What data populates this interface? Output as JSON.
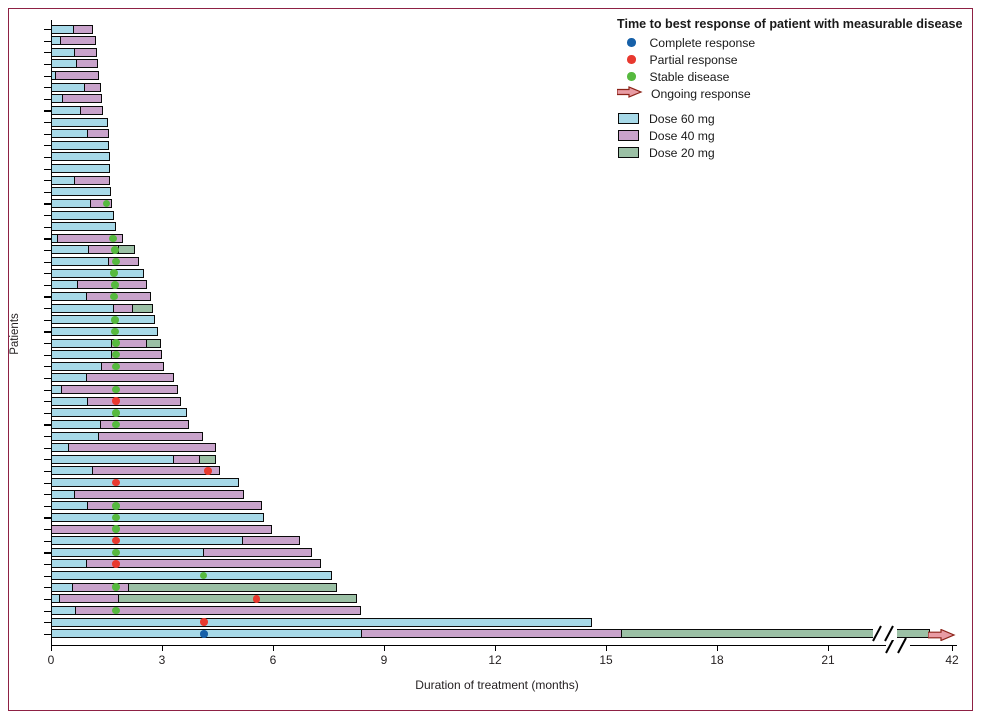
{
  "figure": {
    "border_color": "#8E2144",
    "background": "#ffffff"
  },
  "legend": {
    "title": "Time to best response of patient with measurable disease",
    "response_items": [
      {
        "key": "complete",
        "label": "Complete response",
        "marker": "dot",
        "color": "#1660A8"
      },
      {
        "key": "partial",
        "label": "Partial response",
        "marker": "dot",
        "color": "#E8392F"
      },
      {
        "key": "stable",
        "label": "Stable disease",
        "marker": "dot",
        "color": "#56B93F"
      },
      {
        "key": "ongoing",
        "label": "Ongoing response",
        "marker": "arrow",
        "color": "#E89CA4",
        "stroke": "#8C2318"
      }
    ],
    "dose_items": [
      {
        "dose": "60",
        "label": "Dose 60 mg",
        "color": "#A7D9E8"
      },
      {
        "dose": "40",
        "label": "Dose 40 mg",
        "color": "#C9A3CB"
      },
      {
        "dose": "20",
        "label": "Dose 20 mg",
        "color": "#9BC0A5"
      }
    ]
  },
  "axes": {
    "x_label": "Duration of treatment (months)",
    "y_label": "Patients",
    "x_ticks": [
      0,
      3,
      6,
      9,
      12,
      15,
      18,
      21,
      42
    ],
    "axis_break_between": [
      21,
      42
    ]
  },
  "chart_data": {
    "type": "bar",
    "subtype": "swimmer-plot",
    "unit": "months",
    "title": "Time to best response of patient with measurable disease",
    "xlabel": "Duration of treatment (months)",
    "ylabel": "Patients",
    "xlim": [
      0,
      42
    ],
    "patients": [
      {
        "segments": [
          {
            "dose": "60",
            "end": 0.63
          },
          {
            "dose": "40",
            "end": 1.14
          }
        ]
      },
      {
        "segments": [
          {
            "dose": "60",
            "end": 0.26
          },
          {
            "dose": "40",
            "end": 1.22
          }
        ]
      },
      {
        "segments": [
          {
            "dose": "60",
            "end": 0.65
          },
          {
            "dose": "40",
            "end": 1.25
          }
        ]
      },
      {
        "segments": [
          {
            "dose": "60",
            "end": 0.69
          },
          {
            "dose": "40",
            "end": 1.27
          }
        ]
      },
      {
        "segments": [
          {
            "dose": "60",
            "end": 0.14
          },
          {
            "dose": "40",
            "end": 1.3
          }
        ]
      },
      {
        "segments": [
          {
            "dose": "60",
            "end": 0.92
          },
          {
            "dose": "40",
            "end": 1.35
          }
        ]
      },
      {
        "segments": [
          {
            "dose": "60",
            "end": 0.32
          },
          {
            "dose": "40",
            "end": 1.37
          }
        ]
      },
      {
        "segments": [
          {
            "dose": "60",
            "end": 0.82
          },
          {
            "dose": "40",
            "end": 1.4
          }
        ]
      },
      {
        "segments": [
          {
            "dose": "60",
            "end": 1.55
          }
        ]
      },
      {
        "segments": [
          {
            "dose": "60",
            "end": 1.01
          },
          {
            "dose": "40",
            "end": 1.57
          }
        ]
      },
      {
        "segments": [
          {
            "dose": "60",
            "end": 1.58
          }
        ]
      },
      {
        "segments": [
          {
            "dose": "60",
            "end": 1.59
          }
        ]
      },
      {
        "segments": [
          {
            "dose": "60",
            "end": 1.6
          }
        ],
        "bold": true
      },
      {
        "segments": [
          {
            "dose": "60",
            "end": 0.65
          },
          {
            "dose": "40",
            "end": 1.6
          }
        ]
      },
      {
        "segments": [
          {
            "dose": "60",
            "end": 1.62
          }
        ]
      },
      {
        "segments": [
          {
            "dose": "60",
            "end": 1.08
          },
          {
            "dose": "40",
            "end": 1.64
          }
        ],
        "marker": {
          "type": "stable",
          "month": 1.5
        }
      },
      {
        "segments": [
          {
            "dose": "60",
            "end": 1.7
          }
        ]
      },
      {
        "segments": [
          {
            "dose": "60",
            "end": 1.76
          }
        ]
      },
      {
        "segments": [
          {
            "dose": "60",
            "end": 0.2
          },
          {
            "dose": "40",
            "end": 1.95
          }
        ],
        "marker": {
          "type": "stable",
          "month": 1.68
        },
        "bold": true
      },
      {
        "segments": [
          {
            "dose": "60",
            "end": 1.04
          },
          {
            "dose": "40",
            "end": 1.85
          },
          {
            "dose": "20",
            "end": 2.27
          }
        ],
        "marker": {
          "type": "stable",
          "month": 1.73
        }
      },
      {
        "segments": [
          {
            "dose": "60",
            "end": 1.57
          },
          {
            "dose": "40",
            "end": 2.39
          }
        ],
        "marker": {
          "type": "stable",
          "month": 1.76
        }
      },
      {
        "segments": [
          {
            "dose": "60",
            "end": 2.51
          }
        ],
        "marker": {
          "type": "stable",
          "month": 1.7
        }
      },
      {
        "segments": [
          {
            "dose": "60",
            "end": 0.72
          },
          {
            "dose": "40",
            "end": 2.6
          }
        ],
        "marker": {
          "type": "stable",
          "month": 1.73
        }
      },
      {
        "segments": [
          {
            "dose": "60",
            "end": 0.98
          },
          {
            "dose": "40",
            "end": 2.7
          }
        ],
        "marker": {
          "type": "stable",
          "month": 1.7
        }
      },
      {
        "segments": [
          {
            "dose": "60",
            "end": 1.7
          },
          {
            "dose": "40",
            "end": 2.22
          },
          {
            "dose": "20",
            "end": 2.77
          }
        ],
        "bold": true
      },
      {
        "segments": [
          {
            "dose": "60",
            "end": 2.81
          }
        ],
        "marker": {
          "type": "stable",
          "month": 1.73
        }
      },
      {
        "segments": [
          {
            "dose": "60",
            "end": 2.88
          }
        ],
        "marker": {
          "type": "stable",
          "month": 1.73
        }
      },
      {
        "segments": [
          {
            "dose": "60",
            "end": 1.65
          },
          {
            "dose": "40",
            "end": 2.59
          },
          {
            "dose": "20",
            "end": 2.97
          }
        ],
        "marker": {
          "type": "stable",
          "month": 1.75
        }
      },
      {
        "segments": [
          {
            "dose": "60",
            "end": 1.65
          },
          {
            "dose": "40",
            "end": 3.01
          }
        ],
        "marker": {
          "type": "stable",
          "month": 1.75
        }
      },
      {
        "segments": [
          {
            "dose": "60",
            "end": 1.39
          },
          {
            "dose": "40",
            "end": 3.05
          }
        ],
        "marker": {
          "type": "stable",
          "month": 1.75
        }
      },
      {
        "segments": [
          {
            "dose": "60",
            "end": 0.98
          },
          {
            "dose": "40",
            "end": 3.32
          }
        ]
      },
      {
        "segments": [
          {
            "dose": "60",
            "end": 0.31
          },
          {
            "dose": "40",
            "end": 3.44
          }
        ],
        "marker": {
          "type": "stable",
          "month": 1.75
        }
      },
      {
        "segments": [
          {
            "dose": "60",
            "end": 1.01
          },
          {
            "dose": "40",
            "end": 3.52
          }
        ],
        "marker": {
          "type": "partial",
          "month": 1.75
        }
      },
      {
        "segments": [
          {
            "dose": "60",
            "end": 3.68
          }
        ],
        "marker": {
          "type": "stable",
          "month": 1.75
        }
      },
      {
        "segments": [
          {
            "dose": "60",
            "end": 1.34
          },
          {
            "dose": "40",
            "end": 3.73
          }
        ],
        "marker": {
          "type": "stable",
          "month": 1.75
        }
      },
      {
        "segments": [
          {
            "dose": "60",
            "end": 1.3
          },
          {
            "dose": "40",
            "end": 4.12
          }
        ]
      },
      {
        "segments": [
          {
            "dose": "60",
            "end": 0.49
          },
          {
            "dose": "40",
            "end": 4.45
          }
        ]
      },
      {
        "segments": [
          {
            "dose": "60",
            "end": 3.32
          },
          {
            "dose": "40",
            "end": 4.03
          },
          {
            "dose": "20",
            "end": 4.45
          }
        ]
      },
      {
        "segments": [
          {
            "dose": "60",
            "end": 1.14
          },
          {
            "dose": "40",
            "end": 4.57
          }
        ],
        "marker": {
          "type": "partial",
          "month": 4.24
        }
      },
      {
        "segments": [
          {
            "dose": "60",
            "end": 5.08
          }
        ],
        "marker": {
          "type": "partial",
          "month": 1.75
        },
        "bold": true
      },
      {
        "segments": [
          {
            "dose": "60",
            "end": 0.65
          },
          {
            "dose": "40",
            "end": 5.22
          }
        ]
      },
      {
        "segments": [
          {
            "dose": "60",
            "end": 1.01
          },
          {
            "dose": "40",
            "end": 5.71
          }
        ],
        "marker": {
          "type": "stable",
          "month": 1.75
        }
      },
      {
        "segments": [
          {
            "dose": "60",
            "end": 5.76
          }
        ],
        "marker": {
          "type": "stable",
          "month": 1.75
        }
      },
      {
        "segments": [
          {
            "dose": "40",
            "end": 5.98
          }
        ],
        "marker": {
          "type": "stable",
          "month": 1.75
        }
      },
      {
        "segments": [
          {
            "dose": "60",
            "end": 5.2
          },
          {
            "dose": "40",
            "end": 6.73
          }
        ],
        "marker": {
          "type": "partial",
          "month": 1.75
        }
      },
      {
        "segments": [
          {
            "dose": "60",
            "end": 4.14
          },
          {
            "dose": "40",
            "end": 7.05
          }
        ],
        "marker": {
          "type": "stable",
          "month": 1.75
        }
      },
      {
        "segments": [
          {
            "dose": "60",
            "end": 0.98
          },
          {
            "dose": "40",
            "end": 7.3
          }
        ],
        "marker": {
          "type": "partial",
          "month": 1.75
        }
      },
      {
        "segments": [
          {
            "dose": "60",
            "end": 7.6
          }
        ],
        "marker": {
          "type": "stable",
          "month": 4.12
        }
      },
      {
        "segments": [
          {
            "dose": "60",
            "end": 0.6
          },
          {
            "dose": "40",
            "end": 2.11
          },
          {
            "dose": "20",
            "end": 7.72
          }
        ],
        "marker": {
          "type": "stable",
          "month": 1.75
        },
        "bold": true
      },
      {
        "segments": [
          {
            "dose": "60",
            "end": 0.24
          },
          {
            "dose": "40",
            "end": 1.84
          },
          {
            "dose": "20",
            "end": 8.28
          }
        ],
        "marker": {
          "type": "partial",
          "month": 5.56
        },
        "bold": true
      },
      {
        "segments": [
          {
            "dose": "60",
            "end": 0.67
          },
          {
            "dose": "40",
            "end": 8.39
          }
        ],
        "marker": {
          "type": "stable",
          "month": 1.75
        }
      },
      {
        "segments": [
          {
            "dose": "60",
            "end": 14.62
          }
        ],
        "marker": {
          "type": "partial",
          "month": 4.14
        }
      },
      {
        "segments": [
          {
            "dose": "60",
            "end": 8.41
          },
          {
            "dose": "40",
            "end": 15.42
          },
          {
            "dose": "20",
            "end": 42
          }
        ],
        "marker": {
          "type": "complete",
          "month": 4.14
        },
        "ongoing": true,
        "axis_break_on_bar": true
      }
    ]
  }
}
